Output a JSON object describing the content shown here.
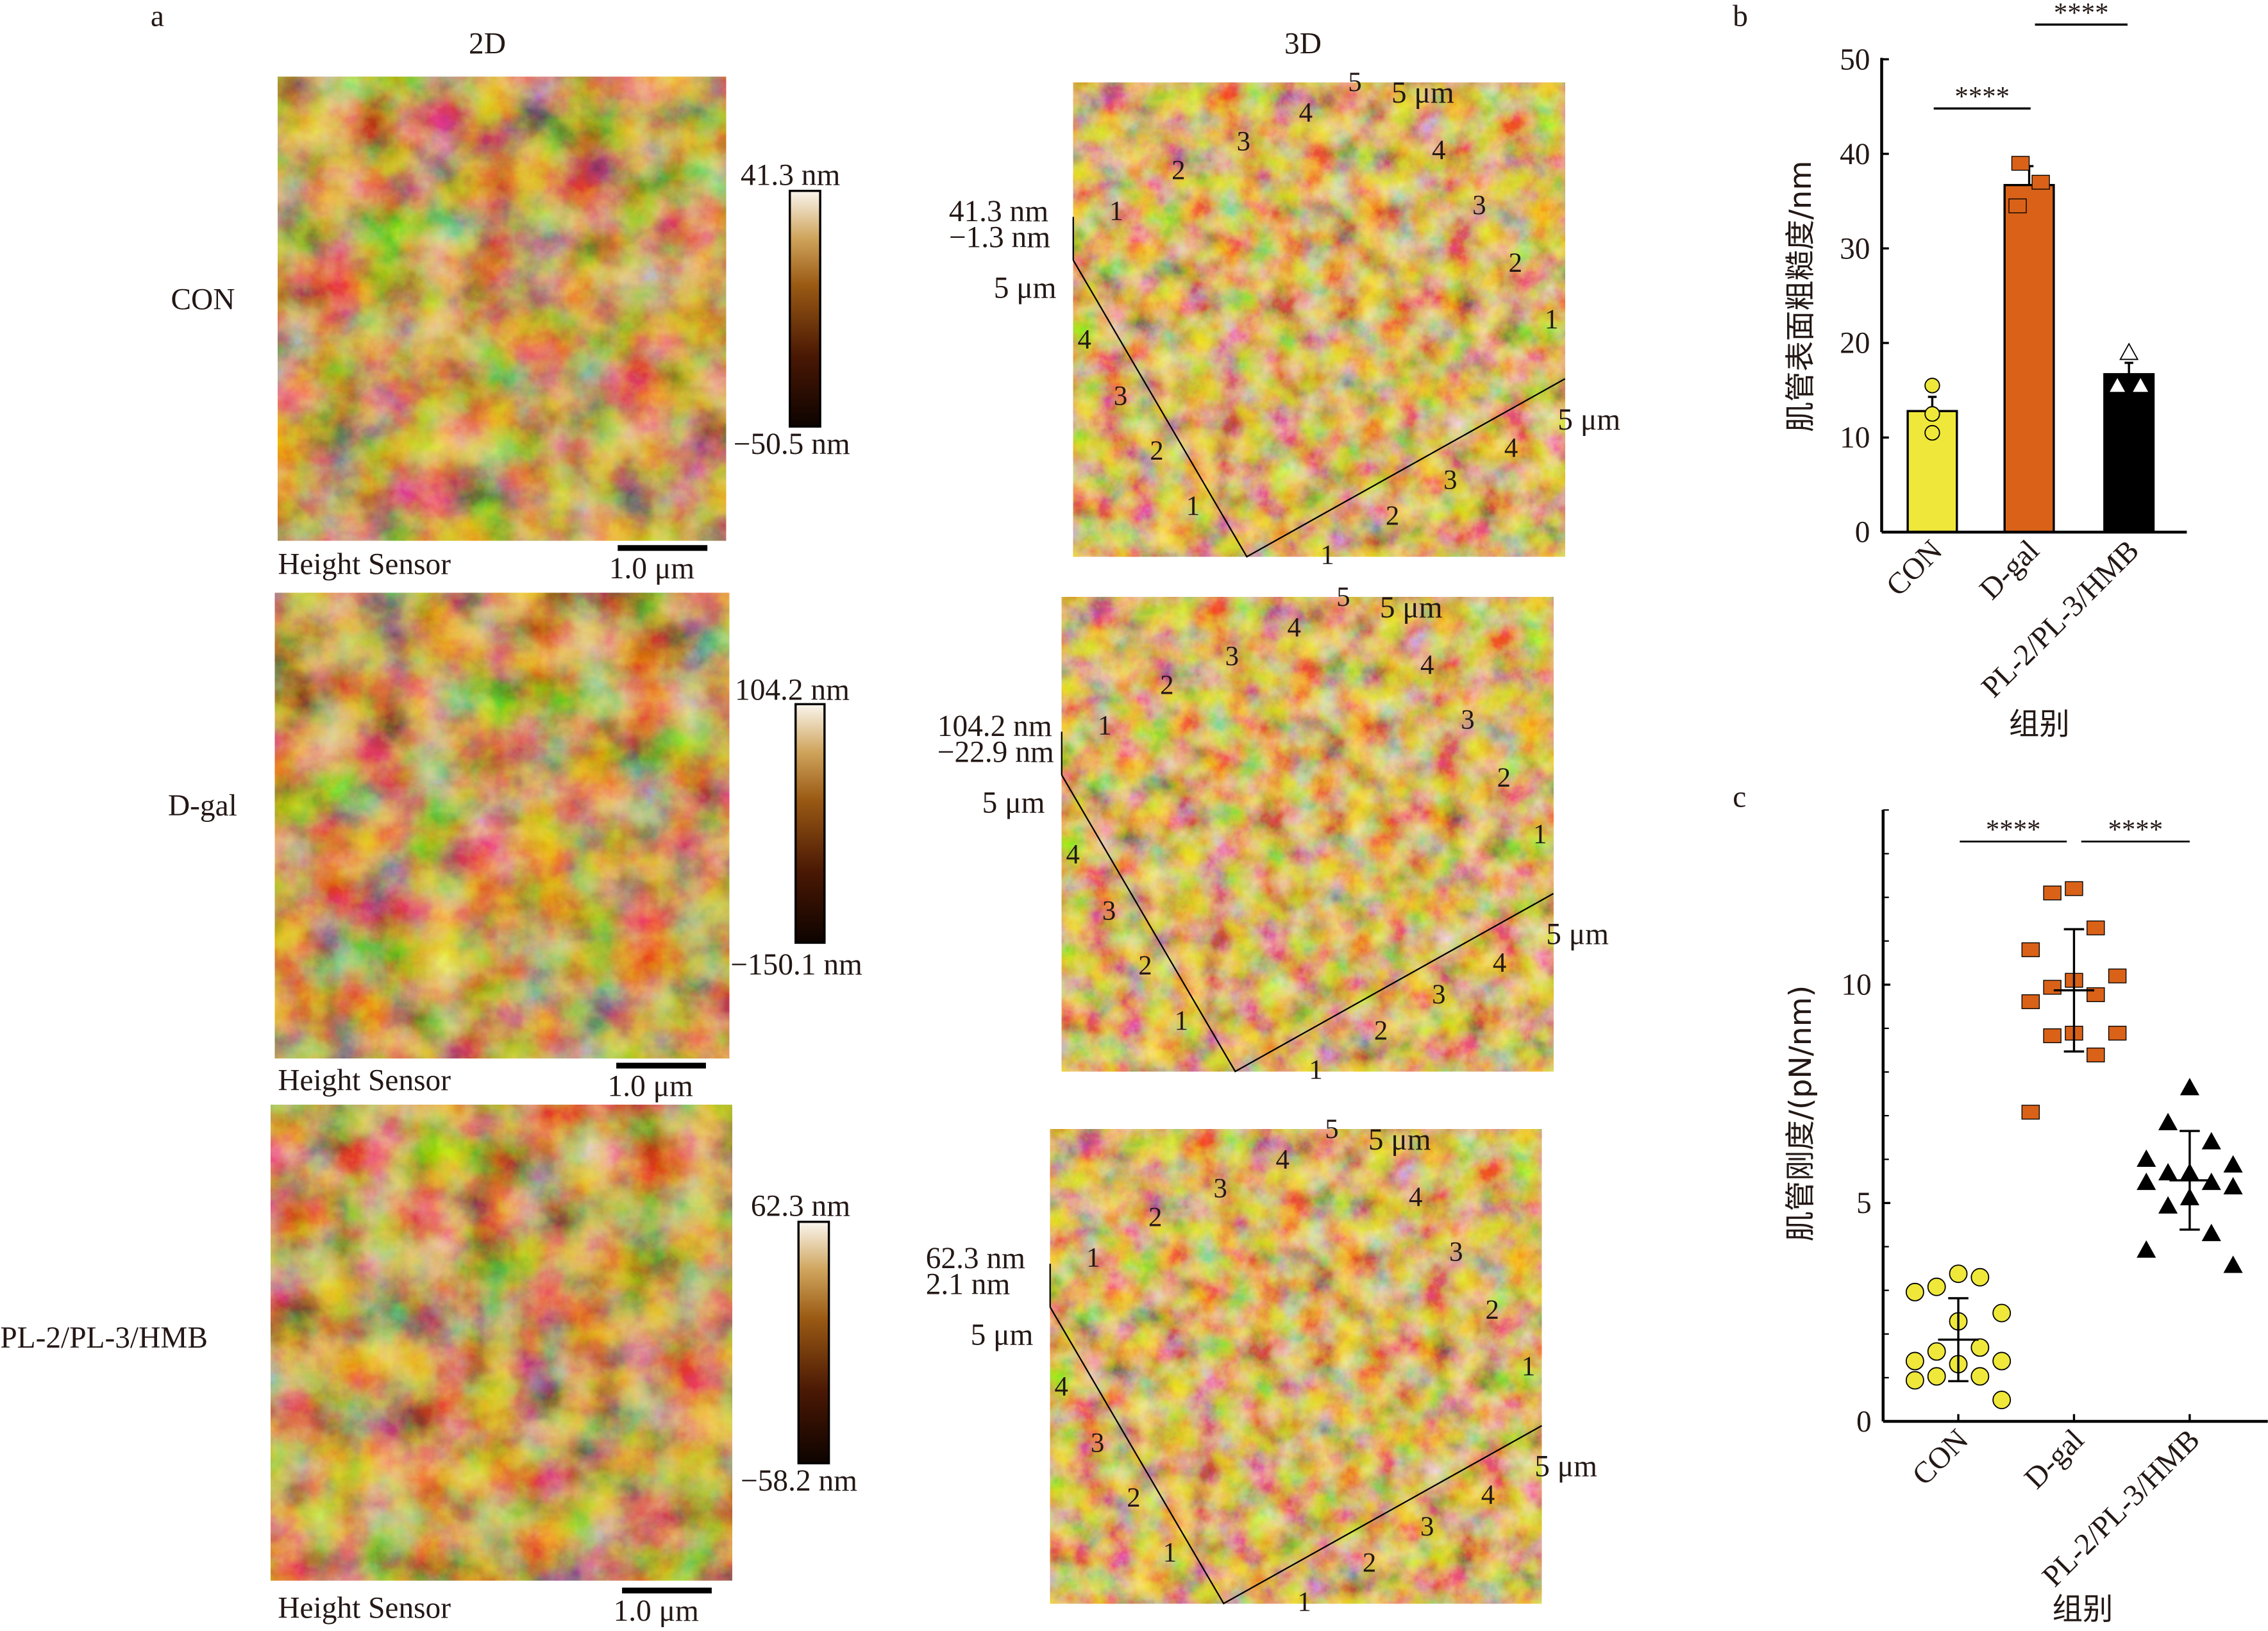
{
  "panel_a": {
    "label": "a",
    "col_2d": "2D",
    "col_3d": "3D",
    "scale_bar": "1.0 μm",
    "sensor_label": "Height Sensor",
    "rows": [
      {
        "name": "CON",
        "max": "41.3 nm",
        "min": "−50.5 nm",
        "z_top": "41.3 nm",
        "z_bot": "−1.3 nm"
      },
      {
        "name": "D-gal",
        "max": "104.2 nm",
        "min": "−150.1 nm",
        "z_top": "104.2 nm",
        "z_bot": "−22.9 nm"
      },
      {
        "name": "PL-2/PL-3/HMB",
        "max": "62.3 nm",
        "min": "−58.2 nm",
        "z_top": "62.3 nm",
        "z_bot": "2.1 nm"
      }
    ],
    "axis_ticks": [
      "1",
      "2",
      "3",
      "4",
      "5"
    ],
    "axis_unit": "5 μm",
    "colormap": [
      "#1a0800",
      "#5a2205",
      "#9a5a14",
      "#c9963c",
      "#f4ead2"
    ]
  },
  "colors": {
    "CON": "#efe83a",
    "D-gal": "#d96218",
    "PL-2/PL-3/HMB": "#000000"
  },
  "chart_data": [
    {
      "panel": "b",
      "type": "bar",
      "categories": [
        "CON",
        "D-gal",
        "PL-2/PL-3/HMB"
      ],
      "values": [
        12.8,
        36.7,
        16.7
      ],
      "errors": [
        1.5,
        2.0,
        1.2
      ],
      "points": [
        [
          15.5,
          12.5,
          10.5
        ],
        [
          39.0,
          37.0,
          34.5
        ],
        [
          19.0,
          15.5,
          15.5
        ]
      ],
      "markers": [
        "circle",
        "square",
        "triangle-open"
      ],
      "ylabel": "肌管表面粗糙度/nm",
      "xlabel": "组别",
      "ylim": [
        0,
        50
      ],
      "yticks": [
        "0",
        "10",
        "20",
        "30",
        "40",
        "50"
      ],
      "significance": [
        {
          "from": "CON",
          "to": "D-gal",
          "label": "****"
        },
        {
          "from": "D-gal",
          "to": "PL-2/PL-3/HMB",
          "label": "****"
        }
      ]
    },
    {
      "panel": "c",
      "type": "scatter",
      "categories": [
        "CON",
        "D-gal",
        "PL-2/PL-3/HMB"
      ],
      "means": [
        1.87,
        9.87,
        5.52
      ],
      "sd": [
        0.95,
        1.4,
        1.13
      ],
      "points": [
        [
          3.38,
          3.08,
          3.3,
          2.96,
          2.48,
          2.29,
          1.6,
          1.69,
          1.38,
          1.38,
          1.31,
          1.03,
          1.03,
          0.94,
          0.49
        ],
        [
          12.2,
          12.1,
          11.3,
          10.8,
          10.2,
          10.1,
          9.94,
          9.77,
          9.61,
          8.89,
          8.89,
          8.83,
          8.39,
          7.08
        ],
        [
          7.64,
          6.84,
          6.4,
          6.0,
          5.87,
          5.69,
          5.69,
          5.47,
          5.47,
          5.37,
          5.12,
          4.93,
          4.3,
          3.92,
          3.57
        ]
      ],
      "markers": [
        "circle",
        "square",
        "triangle"
      ],
      "ylabel": "肌管刚度/(pN/nm)",
      "xlabel": "组别",
      "ylim": [
        0,
        14
      ],
      "yticks": [
        "0",
        "5",
        "10"
      ],
      "significance": [
        {
          "from": "CON",
          "to": "D-gal",
          "label": "****"
        },
        {
          "from": "D-gal",
          "to": "PL-2/PL-3/HMB",
          "label": "****"
        }
      ]
    }
  ]
}
